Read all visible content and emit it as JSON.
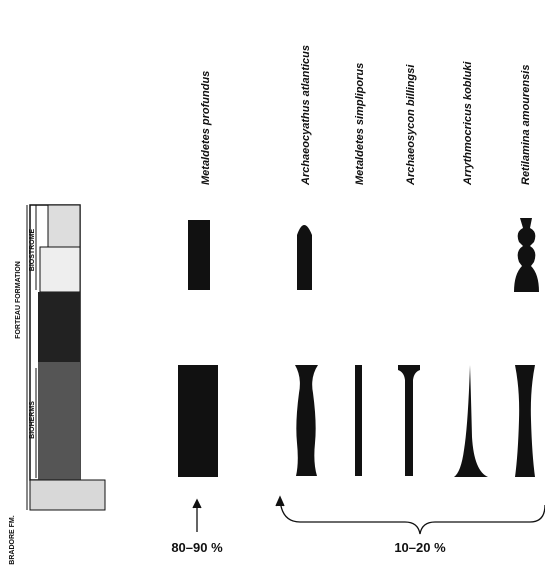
{
  "species": [
    "Metaldetes profundus",
    "Archaeocyathus atlanticus",
    "Metaldetes simpliporus",
    "Archaeosycon billingsi",
    "Arrythmocricus kobluki",
    "Retilamina amourensis"
  ],
  "units": {
    "formation": "FORTEAU FORMATION",
    "biostrome": "BIOSTROME",
    "bioherms": "BIOHERMS",
    "lower": "BRADORE FM."
  },
  "abundance": {
    "dominant": "80–90 %",
    "others": "10–20 %"
  }
}
